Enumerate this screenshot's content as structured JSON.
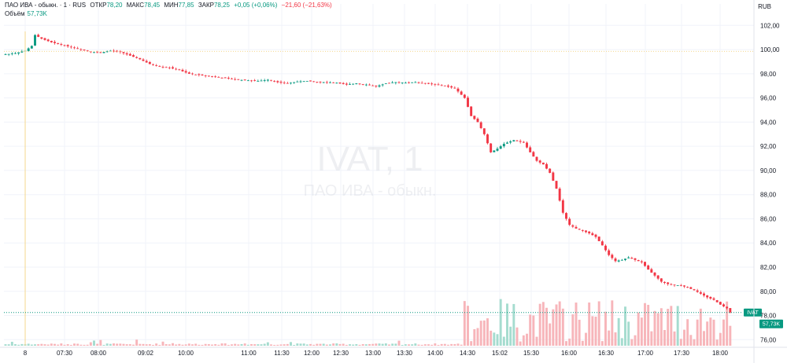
{
  "header": {
    "symbol_name": "ПАО ИВА - обыкн. · 1 · RUS",
    "open_label": "ОТКР",
    "open_value": "78,20",
    "high_label": "МАКС",
    "high_value": "78,45",
    "low_label": "МИН",
    "low_value": "77,85",
    "close_label": "ЗАКР",
    "close_value": "78,25",
    "change_value": "+0,05 (+0,06%)",
    "day_change_value": "−21,60 (−21,63%)"
  },
  "volume": {
    "label": "Объём",
    "value": "57,73K"
  },
  "currency": "RUB",
  "watermark": {
    "title": "IVAT, 1",
    "subtitle": "ПАО ИВА - обыкн."
  },
  "badges": {
    "symbol_badge": "IVAT",
    "volume_badge": "57,73K"
  },
  "colors": {
    "up": "#089981",
    "down": "#f23645",
    "vol_up": "#a5dccf",
    "vol_down": "#f7b5ba",
    "grid": "#f0f3fa",
    "prev_close": "#f5d78e",
    "axis_text": "#131722"
  },
  "chart_data": {
    "type": "candlestick",
    "y_axis_ticks": [
      "102,00",
      "100,00",
      "98,00",
      "96,00",
      "94,00",
      "92,00",
      "90,00",
      "88,00",
      "86,00",
      "84,00",
      "82,00",
      "80,00",
      "78,00",
      "76,00"
    ],
    "ylim": [
      75.5,
      102.8
    ],
    "x_axis_ticks": [
      "8",
      "07:30",
      "08:00",
      "09:02",
      "10:00",
      "11:00",
      "11:30",
      "12:00",
      "12:30",
      "13:00",
      "13:30",
      "14:00",
      "14:30",
      "15:02",
      "15:30",
      "16:00",
      "16:30",
      "17:00",
      "17:30",
      "18:00"
    ],
    "previous_close": 99.85,
    "last_price": 78.25,
    "price_path": [
      [
        0,
        99.6
      ],
      [
        3,
        99.7
      ],
      [
        6,
        99.9
      ],
      [
        8,
        100.3
      ],
      [
        9,
        101.2
      ],
      [
        11,
        100.9
      ],
      [
        14,
        100.6
      ],
      [
        17,
        100.4
      ],
      [
        20,
        100.2
      ],
      [
        23,
        100.0
      ],
      [
        26,
        99.8
      ],
      [
        29,
        99.75
      ],
      [
        32,
        99.9
      ],
      [
        35,
        99.8
      ],
      [
        38,
        99.5
      ],
      [
        41,
        99.2
      ],
      [
        44,
        98.8
      ],
      [
        47,
        98.6
      ],
      [
        50,
        98.5
      ],
      [
        53,
        98.3
      ],
      [
        56,
        98.0
      ],
      [
        59,
        97.9
      ],
      [
        62,
        97.8
      ],
      [
        65,
        97.7
      ],
      [
        68,
        97.6
      ],
      [
        71,
        97.5
      ],
      [
        74,
        97.45
      ],
      [
        77,
        97.4
      ],
      [
        80,
        97.5
      ],
      [
        83,
        97.3
      ],
      [
        86,
        97.2
      ],
      [
        89,
        97.35
      ],
      [
        92,
        97.4
      ],
      [
        95,
        97.3
      ],
      [
        98,
        97.3
      ],
      [
        101,
        97.25
      ],
      [
        104,
        97.1
      ],
      [
        107,
        97.2
      ],
      [
        110,
        97.1
      ],
      [
        113,
        96.95
      ],
      [
        116,
        97.2
      ],
      [
        119,
        97.3
      ],
      [
        122,
        97.25
      ],
      [
        125,
        97.3
      ],
      [
        128,
        97.2
      ],
      [
        131,
        97.1
      ],
      [
        134,
        97.0
      ],
      [
        137,
        96.8
      ],
      [
        140,
        96.0
      ],
      [
        142,
        94.5
      ],
      [
        144,
        94.0
      ],
      [
        146,
        93.0
      ],
      [
        148,
        91.5
      ],
      [
        150,
        91.8
      ],
      [
        152,
        92.2
      ],
      [
        155,
        92.5
      ],
      [
        158,
        92.3
      ],
      [
        160,
        91.5
      ],
      [
        162,
        90.8
      ],
      [
        164,
        90.5
      ],
      [
        166,
        89.8
      ],
      [
        168,
        88.5
      ],
      [
        170,
        86.5
      ],
      [
        172,
        85.5
      ],
      [
        174,
        85.2
      ],
      [
        176,
        85.0
      ],
      [
        178,
        84.8
      ],
      [
        180,
        84.5
      ],
      [
        182,
        83.8
      ],
      [
        184,
        83.0
      ],
      [
        186,
        82.5
      ],
      [
        188,
        82.6
      ],
      [
        190,
        82.8
      ],
      [
        192,
        82.6
      ],
      [
        194,
        82.4
      ],
      [
        196,
        81.8
      ],
      [
        198,
        81.3
      ],
      [
        200,
        80.8
      ],
      [
        202,
        80.6
      ],
      [
        204,
        80.5
      ],
      [
        206,
        80.5
      ],
      [
        208,
        80.3
      ],
      [
        210,
        80.1
      ],
      [
        212,
        79.8
      ],
      [
        214,
        79.5
      ],
      [
        216,
        79.3
      ],
      [
        218,
        78.9
      ],
      [
        220,
        78.6
      ],
      [
        221,
        78.25
      ]
    ]
  }
}
